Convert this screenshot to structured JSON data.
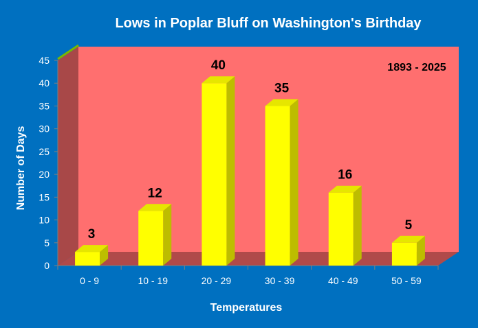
{
  "chart_data": {
    "type": "bar",
    "title": "Lows in Poplar Bluff on Washington's Birthday",
    "xlabel": "Temperatures",
    "ylabel": "Number of Days",
    "annotation": "1893 - 2025",
    "categories": [
      "0 - 9",
      "10 - 19",
      "20 - 29",
      "30 - 39",
      "40 - 49",
      "50 - 59"
    ],
    "values": [
      3,
      12,
      40,
      35,
      16,
      5
    ],
    "ylim": [
      0,
      45
    ],
    "yticks": [
      0,
      5,
      10,
      15,
      20,
      25,
      30,
      35,
      40,
      45
    ],
    "grid": false,
    "legend": "none",
    "colors": {
      "background": "#0070c0",
      "plot_back_wall": "#ff6f6f",
      "plot_side_wall": "#a84848",
      "plot_floor": "#b04a4a",
      "bar_front": "#ffff00",
      "bar_side": "#bdbd00",
      "bar_top": "#e6e600",
      "text": "#ffffff",
      "label_text": "#000000"
    }
  }
}
